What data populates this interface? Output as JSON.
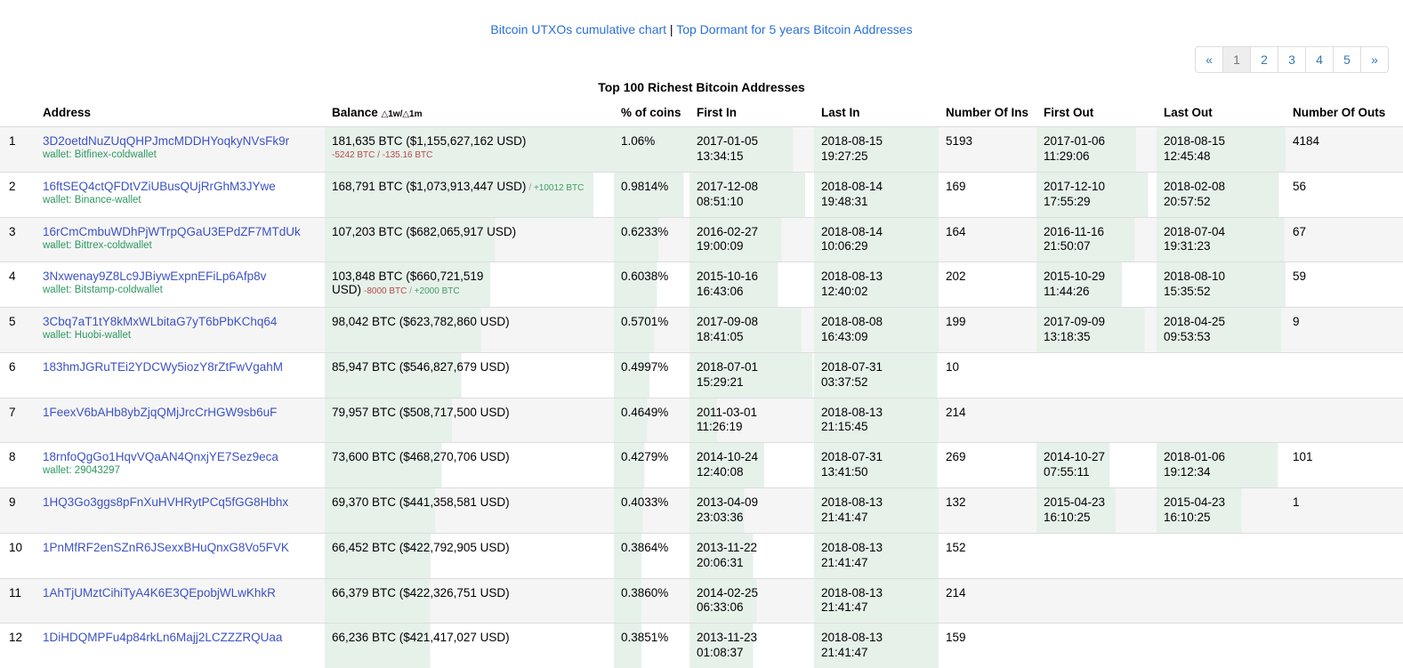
{
  "nav": {
    "link1": "Bitcoin UTXOs cumulative chart",
    "separator": " | ",
    "link2": "Top Dormant for 5 years Bitcoin Addresses"
  },
  "pagination": {
    "items": [
      {
        "label": "«",
        "active": false
      },
      {
        "label": "1",
        "active": true
      },
      {
        "label": "2",
        "active": false
      },
      {
        "label": "3",
        "active": false
      },
      {
        "label": "4",
        "active": false
      },
      {
        "label": "5",
        "active": false
      },
      {
        "label": "»",
        "active": false
      }
    ]
  },
  "title": "Top 100 Richest Bitcoin Addresses",
  "table": {
    "wallet_prefix": "wallet: ",
    "headers": {
      "rank": "",
      "address": "Address",
      "balance": "Balance",
      "balance_delta": "△1w/△1m",
      "pct": "% of coins",
      "first_in": "First In",
      "last_in": "Last In",
      "ins": "Number Of Ins",
      "first_out": "First Out",
      "last_out": "Last Out",
      "outs": "Number Of Outs"
    },
    "rows": [
      {
        "rank": "1",
        "address": "3D2oetdNuZUqQHPJmcMDDHYoqkyNVsFk9r",
        "wallet": "Bitfinex-coldwallet",
        "balance": "181,635 BTC ($1,155,627,162 USD)",
        "delta": {
          "position": "below",
          "segments": [
            {
              "text": "-5242 BTC / -135.16 BTC",
              "color": "red"
            }
          ]
        },
        "pct": "1.06%",
        "first_in": "2017-01-05 13:34:15",
        "last_in": "2018-08-15 19:27:25",
        "ins": "5193",
        "first_out": "2017-01-06 11:29:06",
        "last_out": "2018-08-15 12:45:48",
        "outs": "4184",
        "fills": {
          "balance": 1,
          "pct": 1,
          "first_in": 0.83,
          "last_in": 1,
          "first_out": 0.83,
          "last_out": 1
        }
      },
      {
        "rank": "2",
        "address": "16ftSEQ4ctQFDtVZiUBusQUjRrGhM3JYwe",
        "wallet": "Binance-wallet",
        "balance": "168,791 BTC ($1,073,913,447 USD)",
        "delta": {
          "position": "inline",
          "segments": [
            {
              "text": "/ ",
              "color": "gray"
            },
            {
              "text": "+10012 BTC",
              "color": "green"
            }
          ]
        },
        "pct": "0.9814%",
        "first_in": "2017-12-08 08:51:10",
        "last_in": "2018-08-14 19:48:31",
        "ins": "169",
        "first_out": "2017-12-10 17:55:29",
        "last_out": "2018-02-08 20:57:52",
        "outs": "56",
        "fills": {
          "balance": 0.93,
          "pct": 0.926,
          "first_in": 0.93,
          "last_in": 1,
          "first_out": 0.93,
          "last_out": 0.95
        }
      },
      {
        "rank": "3",
        "address": "16rCmCmbuWDhPjWTrpQGaU3EPdZF7MTdUk",
        "wallet": "Bittrex-coldwallet",
        "balance": "107,203 BTC ($682,065,917 USD)",
        "delta": null,
        "pct": "0.6233%",
        "first_in": "2016-02-27 19:00:09",
        "last_in": "2018-08-14 10:06:29",
        "ins": "164",
        "first_out": "2016-11-16 21:50:07",
        "last_out": "2018-07-04 19:31:23",
        "outs": "67",
        "fills": {
          "balance": 0.59,
          "pct": 0.588,
          "first_in": 0.74,
          "last_in": 1,
          "first_out": 0.82,
          "last_out": 0.99
        }
      },
      {
        "rank": "4",
        "address": "3Nxwenay9Z8Lc9JBiywExpnEFiLp6Afp8v",
        "wallet": "Bitstamp-coldwallet",
        "balance": "103,848 BTC ($660,721,519 USD)",
        "delta": {
          "position": "inline",
          "segments": [
            {
              "text": "-8000 BTC",
              "color": "red"
            },
            {
              "text": " / ",
              "color": "gray"
            },
            {
              "text": "+2000 BTC",
              "color": "green"
            }
          ]
        },
        "pct": "0.6038%",
        "first_in": "2015-10-16 16:43:06",
        "last_in": "2018-08-13 12:40:02",
        "ins": "202",
        "first_out": "2015-10-29 11:44:26",
        "last_out": "2018-08-10 15:35:52",
        "outs": "59",
        "fills": {
          "balance": 0.572,
          "pct": 0.57,
          "first_in": 0.71,
          "last_in": 1,
          "first_out": 0.71,
          "last_out": 1
        }
      },
      {
        "rank": "5",
        "address": "3Cbq7aT1tY8kMxWLbitaG7yT6bPbKChq64",
        "wallet": "Huobi-wallet",
        "balance": "98,042 BTC ($623,782,860 USD)",
        "delta": null,
        "pct": "0.5701%",
        "first_in": "2017-09-08 18:41:05",
        "last_in": "2018-08-08 16:43:09",
        "ins": "199",
        "first_out": "2017-09-09 13:18:35",
        "last_out": "2018-04-25 09:53:53",
        "outs": "9",
        "fills": {
          "balance": 0.54,
          "pct": 0.538,
          "first_in": 0.9,
          "last_in": 1,
          "first_out": 0.9,
          "last_out": 0.97
        }
      },
      {
        "rank": "6",
        "address": "183hmJGRuTEi2YDCWy5iozY8rZtFwVgahM",
        "wallet": "",
        "balance": "85,947 BTC ($546,827,679 USD)",
        "delta": null,
        "pct": "0.4997%",
        "first_in": "2018-07-01 15:29:21",
        "last_in": "2018-07-31 03:37:52",
        "ins": "10",
        "first_out": "",
        "last_out": "",
        "outs": "",
        "fills": {
          "balance": 0.473,
          "pct": 0.471,
          "first_in": 0.99,
          "last_in": 0.99,
          "first_out": 0,
          "last_out": 0
        }
      },
      {
        "rank": "7",
        "address": "1FeexV6bAHb8ybZjqQMjJrcCrHGW9sb6uF",
        "wallet": "",
        "balance": "79,957 BTC ($508,717,500 USD)",
        "delta": null,
        "pct": "0.4649%",
        "first_in": "2011-03-01 11:26:19",
        "last_in": "2018-08-13 21:15:45",
        "ins": "214",
        "first_out": "",
        "last_out": "",
        "outs": "",
        "fills": {
          "balance": 0.44,
          "pct": 0.439,
          "first_in": 0.22,
          "last_in": 1,
          "first_out": 0,
          "last_out": 0
        }
      },
      {
        "rank": "8",
        "address": "18rnfoQgGo1HqvVQaAN4QnxjYE7Sez9eca",
        "wallet": "29043297",
        "balance": "73,600 BTC ($468,270,706 USD)",
        "delta": null,
        "pct": "0.4279%",
        "first_in": "2014-10-24 12:40:08",
        "last_in": "2018-07-31 13:41:50",
        "ins": "269",
        "first_out": "2014-10-27 07:55:11",
        "last_out": "2018-01-06 19:12:34",
        "outs": "101",
        "fills": {
          "balance": 0.405,
          "pct": 0.404,
          "first_in": 0.6,
          "last_in": 0.99,
          "first_out": 0.61,
          "last_out": 0.94
        }
      },
      {
        "rank": "9",
        "address": "1HQ3Go3ggs8pFnXuHVHRytPCq5fGG8Hbhx",
        "wallet": "",
        "balance": "69,370 BTC ($441,358,581 USD)",
        "delta": null,
        "pct": "0.4033%",
        "first_in": "2013-04-09 23:03:36",
        "last_in": "2018-08-13 21:41:47",
        "ins": "132",
        "first_out": "2015-04-23 16:10:25",
        "last_out": "2015-04-23 16:10:25",
        "outs": "1",
        "fills": {
          "balance": 0.382,
          "pct": 0.38,
          "first_in": 0.44,
          "last_in": 1,
          "first_out": 0.66,
          "last_out": 0.66
        }
      },
      {
        "rank": "10",
        "address": "1PnMfRF2enSZnR6JSexxBHuQnxG8Vo5FVK",
        "wallet": "",
        "balance": "66,452 BTC ($422,792,905 USD)",
        "delta": null,
        "pct": "0.3864%",
        "first_in": "2013-11-22 20:06:31",
        "last_in": "2018-08-13 21:41:47",
        "ins": "152",
        "first_out": "",
        "last_out": "",
        "outs": "",
        "fills": {
          "balance": 0.366,
          "pct": 0.365,
          "first_in": 0.51,
          "last_in": 1,
          "first_out": 0,
          "last_out": 0
        }
      },
      {
        "rank": "11",
        "address": "1AhTjUMztCihiTyA4K6E3QEpobjWLwKhkR",
        "wallet": "",
        "balance": "66,379 BTC ($422,326,751 USD)",
        "delta": null,
        "pct": "0.3860%",
        "first_in": "2014-02-25 06:33:06",
        "last_in": "2018-08-13 21:41:47",
        "ins": "214",
        "first_out": "",
        "last_out": "",
        "outs": "",
        "fills": {
          "balance": 0.365,
          "pct": 0.364,
          "first_in": 0.54,
          "last_in": 1,
          "first_out": 0,
          "last_out": 0
        }
      },
      {
        "rank": "12",
        "address": "1DiHDQMPFu4p84rkLn6Majj2LCZZZRQUaa",
        "wallet": "",
        "balance": "66,236 BTC ($421,417,027 USD)",
        "delta": null,
        "pct": "0.3851%",
        "first_in": "2013-11-23 01:08:37",
        "last_in": "2018-08-13 21:41:47",
        "ins": "159",
        "first_out": "",
        "last_out": "",
        "outs": "",
        "fills": {
          "balance": 0.365,
          "pct": 0.363,
          "first_in": 0.51,
          "last_in": 1,
          "first_out": 0,
          "last_out": 0
        }
      }
    ]
  },
  "colors": {
    "top_link_blue": "#2a70d8",
    "pagination_blue": "#337ab7",
    "address_link_blue": "#3d52c5",
    "wallet_green": "#2e9962",
    "delta_red": "#b94a48",
    "delta_green": "#3f9e63",
    "delta_gray": "#999999",
    "cell_highlight_green": "#e6f1ea",
    "row_stripe_gray": "#f5f5f5",
    "border_gray": "#dddddd",
    "active_page_bg": "#eeeeee",
    "active_page_fg": "#777777"
  }
}
